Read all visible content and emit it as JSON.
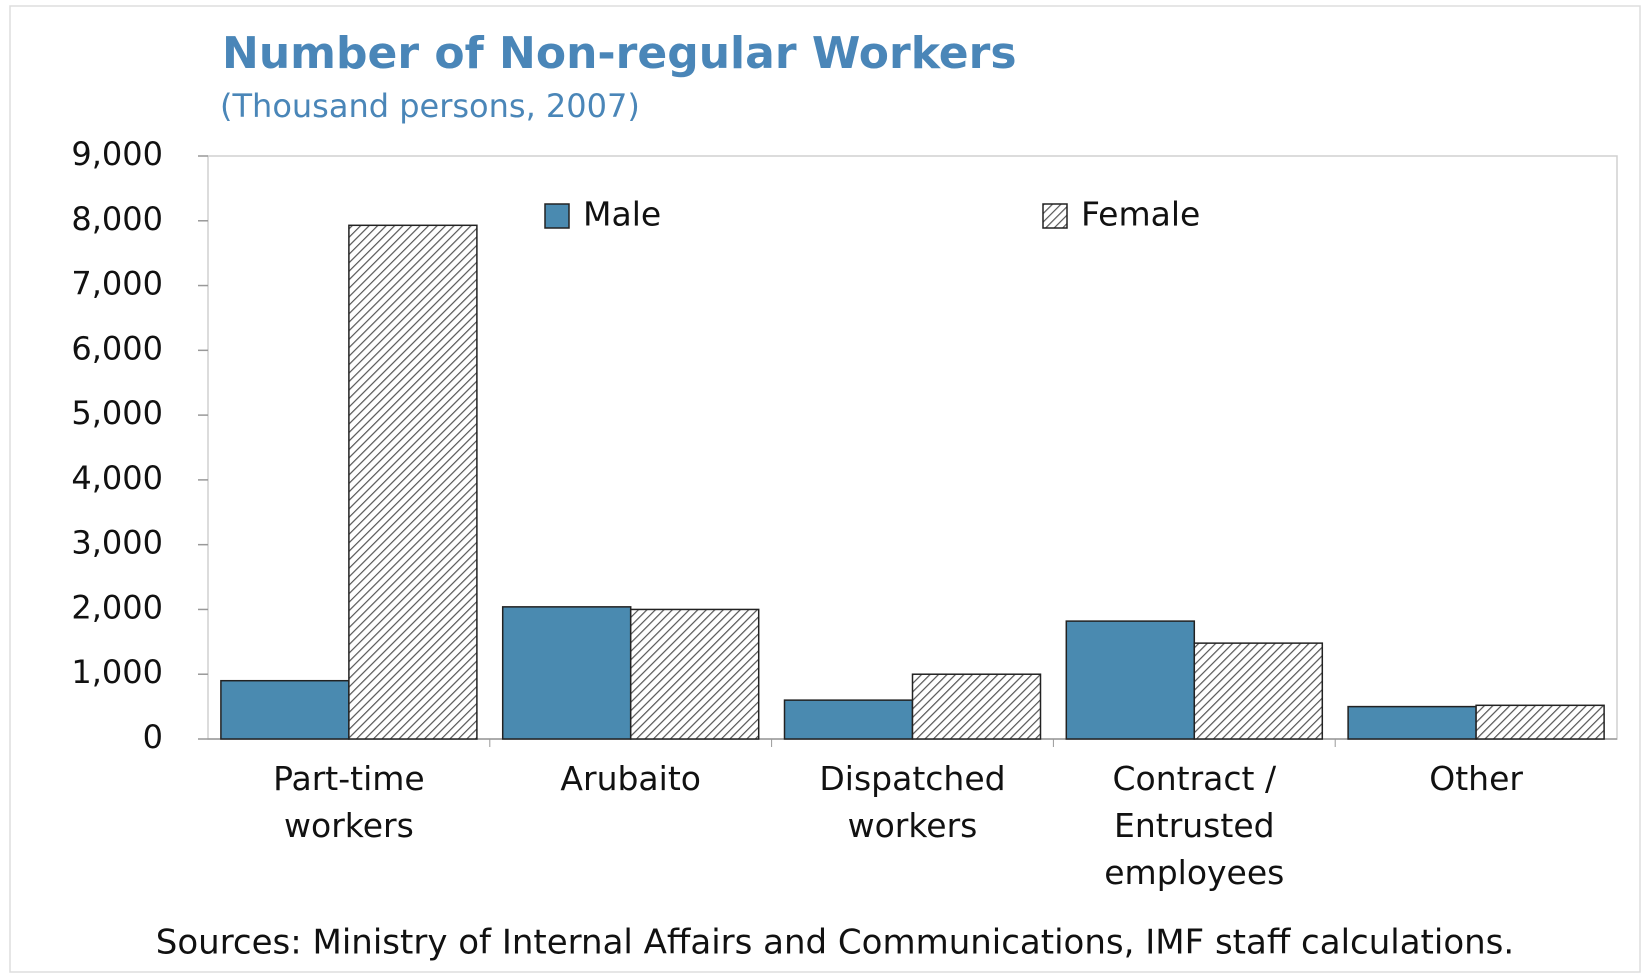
{
  "chart_data": {
    "type": "bar",
    "title": "Number of Non-regular Workers",
    "subtitle": "(Thousand  persons, 2007)",
    "source": "Sources: Ministry of Internal Affairs and Communications, IMF staff calculations.",
    "categories": [
      "Part-time workers",
      "Arubaito",
      "Dispatched workers",
      "Contract / Entrusted employees",
      "Other"
    ],
    "series": [
      {
        "name": "Male",
        "color": "#4a8ab0",
        "values": [
          900,
          2040,
          600,
          1820,
          500
        ]
      },
      {
        "name": "Female",
        "color": "#555555",
        "hatch": true,
        "values": [
          7930,
          2000,
          1000,
          1480,
          520
        ]
      }
    ],
    "ylim": [
      0,
      9000
    ],
    "yticks": [
      0,
      {
        "value": 1000,
        "label": "1,000"
      },
      {
        "value": 2000,
        "label": "2,000"
      },
      {
        "value": 3000,
        "label": "3,000"
      },
      {
        "value": 4000,
        "label": "4,000"
      },
      {
        "value": 5000,
        "label": "5,000"
      },
      {
        "value": 6000,
        "label": "6,000"
      },
      {
        "value": 7000,
        "label": "7,000"
      },
      {
        "value": 8000,
        "label": "8,000"
      },
      {
        "value": 9000,
        "label": "9,000"
      }
    ],
    "grid": false
  }
}
